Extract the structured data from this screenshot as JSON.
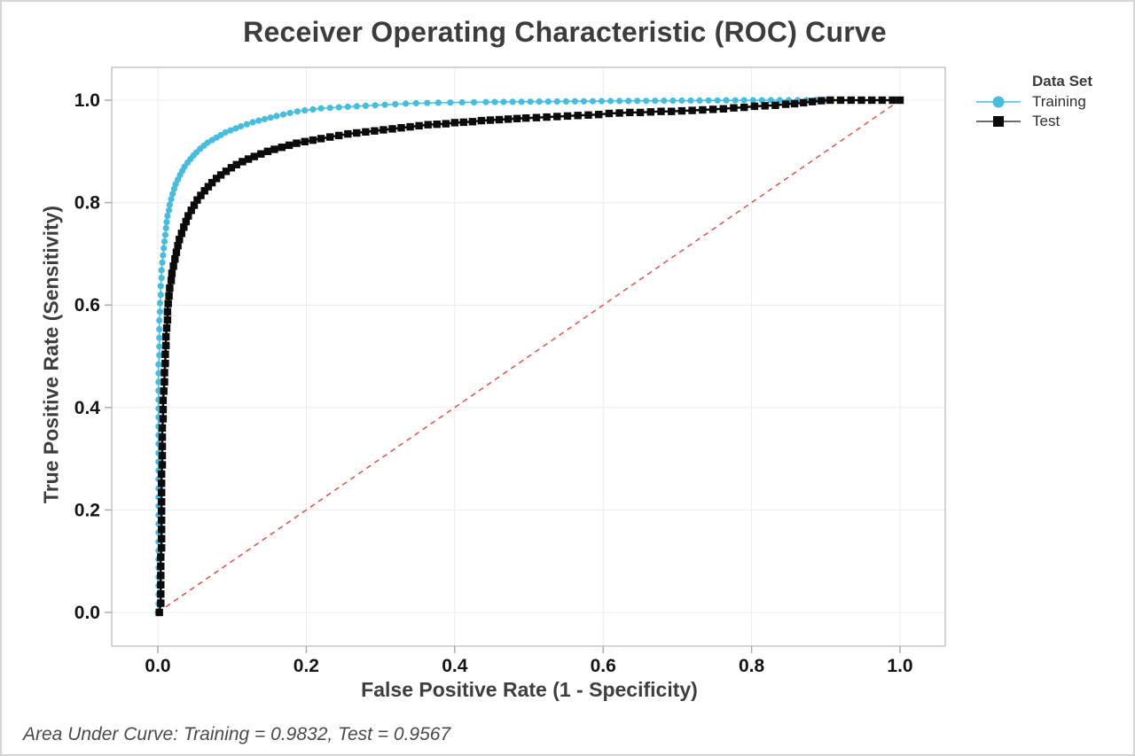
{
  "window": {
    "background_color": "#ffffff",
    "border_color": "#d5d5d5"
  },
  "chart": {
    "title": "Receiver Operating Characteristic (ROC) Curve",
    "x_label": "False Positive Rate (1 - Specificity)",
    "y_label": "True Positive Rate (Sensitivity)",
    "footer": "Area Under Curve: Training = 0.9832, Test = 0.9567",
    "legend": {
      "title": "Data Set",
      "items": [
        {
          "label": "Training",
          "color": "#45bddf",
          "marker": "circle"
        },
        {
          "label": "Test",
          "color": "#0b0b0b",
          "marker": "square"
        }
      ]
    }
  },
  "chart_data": {
    "type": "line",
    "title": "Receiver Operating Characteristic (ROC) Curve",
    "xlabel": "False Positive Rate (1 - Specificity)",
    "ylabel": "True Positive Rate (Sensitivity)",
    "xlim": [
      0,
      1
    ],
    "ylim": [
      0,
      1
    ],
    "x_ticks": [
      "0.0",
      "0.2",
      "0.4",
      "0.6",
      "0.8",
      "1.0"
    ],
    "y_ticks": [
      "0.0",
      "0.2",
      "0.4",
      "0.6",
      "0.8",
      "1.0"
    ],
    "grid": true,
    "grid_color": "#ebebeb",
    "frame_color": "#c6c6c6",
    "tick_color": "#ababab",
    "legend_position": "right-top",
    "reference_line": {
      "name": "chance-diagonal",
      "from": [
        0,
        0
      ],
      "to": [
        1,
        1
      ],
      "color": "#e2463c",
      "style": "dashed"
    },
    "annotations": [
      "Area Under Curve: Training = 0.9832, Test = 0.9567"
    ],
    "series": [
      {
        "name": "Training",
        "auc": 0.9832,
        "color": "#45bddf",
        "marker": "circle",
        "points": [
          [
            0,
            0
          ],
          [
            0.001,
            0.017
          ],
          [
            0.001,
            0.035
          ],
          [
            0.001,
            0.052
          ],
          [
            0.001,
            0.069
          ],
          [
            0.001,
            0.087
          ],
          [
            0.001,
            0.104
          ],
          [
            0.001,
            0.121
          ],
          [
            0.001,
            0.138
          ],
          [
            0.001,
            0.156
          ],
          [
            0.001,
            0.173
          ],
          [
            0.001,
            0.19
          ],
          [
            0.001,
            0.208
          ],
          [
            0.001,
            0.225
          ],
          [
            0.001,
            0.242
          ],
          [
            0.001,
            0.26
          ],
          [
            0.001,
            0.277
          ],
          [
            0.001,
            0.294
          ],
          [
            0.001,
            0.311
          ],
          [
            0.001,
            0.329
          ],
          [
            0.001,
            0.346
          ],
          [
            0.001,
            0.363
          ],
          [
            0.001,
            0.381
          ],
          [
            0.001,
            0.398
          ],
          [
            0.001,
            0.415
          ],
          [
            0.001,
            0.433
          ],
          [
            0.001,
            0.45
          ],
          [
            0.001,
            0.467
          ],
          [
            0.001,
            0.484
          ],
          [
            0.002,
            0.502
          ],
          [
            0.002,
            0.519
          ],
          [
            0.002,
            0.536
          ],
          [
            0.002,
            0.553
          ],
          [
            0.002,
            0.57
          ],
          [
            0.003,
            0.587
          ],
          [
            0.003,
            0.604
          ],
          [
            0.004,
            0.62
          ],
          [
            0.004,
            0.637
          ],
          [
            0.005,
            0.653
          ],
          [
            0.005,
            0.668
          ],
          [
            0.006,
            0.683
          ],
          [
            0.007,
            0.697
          ],
          [
            0.008,
            0.711
          ],
          [
            0.009,
            0.724
          ],
          [
            0.01,
            0.737
          ],
          [
            0.011,
            0.75
          ],
          [
            0.012,
            0.762
          ],
          [
            0.013,
            0.774
          ],
          [
            0.015,
            0.785
          ],
          [
            0.016,
            0.796
          ],
          [
            0.018,
            0.807
          ],
          [
            0.02,
            0.817
          ],
          [
            0.022,
            0.827
          ],
          [
            0.024,
            0.836
          ],
          [
            0.027,
            0.845
          ],
          [
            0.03,
            0.854
          ],
          [
            0.033,
            0.862
          ],
          [
            0.036,
            0.87
          ],
          [
            0.04,
            0.878
          ],
          [
            0.044,
            0.885
          ],
          [
            0.048,
            0.892
          ],
          [
            0.052,
            0.898
          ],
          [
            0.057,
            0.905
          ],
          [
            0.062,
            0.911
          ],
          [
            0.067,
            0.917
          ],
          [
            0.073,
            0.922
          ],
          [
            0.079,
            0.927
          ],
          [
            0.085,
            0.932
          ],
          [
            0.091,
            0.937
          ],
          [
            0.098,
            0.941
          ],
          [
            0.105,
            0.945
          ],
          [
            0.112,
            0.949
          ],
          [
            0.12,
            0.953
          ],
          [
            0.128,
            0.957
          ],
          [
            0.136,
            0.96
          ],
          [
            0.144,
            0.963
          ],
          [
            0.152,
            0.966
          ],
          [
            0.16,
            0.969
          ],
          [
            0.169,
            0.972
          ],
          [
            0.178,
            0.975
          ],
          [
            0.188,
            0.978
          ],
          [
            0.198,
            0.98
          ],
          [
            0.209,
            0.982
          ],
          [
            0.22,
            0.984
          ],
          [
            0.232,
            0.985
          ],
          [
            0.244,
            0.986
          ],
          [
            0.256,
            0.987
          ],
          [
            0.268,
            0.988
          ],
          [
            0.28,
            0.989
          ],
          [
            0.293,
            0.99
          ],
          [
            0.306,
            0.991
          ],
          [
            0.32,
            0.992
          ],
          [
            0.334,
            0.993
          ],
          [
            0.348,
            0.994
          ],
          [
            0.363,
            0.9945
          ],
          [
            0.378,
            0.995
          ],
          [
            0.394,
            0.9953
          ],
          [
            0.41,
            0.9956
          ],
          [
            0.426,
            0.9959
          ],
          [
            0.442,
            0.9962
          ],
          [
            0.454,
            0.9964
          ],
          [
            0.466,
            0.9966
          ],
          [
            0.478,
            0.9967
          ],
          [
            0.49,
            0.9969
          ],
          [
            0.502,
            0.997
          ],
          [
            0.514,
            0.9972
          ],
          [
            0.526,
            0.9973
          ],
          [
            0.538,
            0.9974
          ],
          [
            0.55,
            0.9976
          ],
          [
            0.562,
            0.9977
          ],
          [
            0.574,
            0.9978
          ],
          [
            0.586,
            0.998
          ],
          [
            0.598,
            0.9981
          ],
          [
            0.61,
            0.9982
          ],
          [
            0.622,
            0.9984
          ],
          [
            0.634,
            0.9985
          ],
          [
            0.646,
            0.9986
          ],
          [
            0.658,
            0.9987
          ],
          [
            0.67,
            0.9988
          ],
          [
            0.682,
            0.9989
          ],
          [
            0.694,
            0.999
          ],
          [
            0.706,
            0.9991
          ],
          [
            0.718,
            0.9992
          ],
          [
            0.73,
            0.9993
          ],
          [
            0.742,
            0.9994
          ],
          [
            0.754,
            0.9995
          ],
          [
            0.766,
            0.9996
          ],
          [
            0.778,
            0.9997
          ],
          [
            0.79,
            0.9998
          ],
          [
            0.802,
            0.9998
          ],
          [
            0.814,
            0.9999
          ],
          [
            0.826,
            1
          ],
          [
            0.838,
            1
          ],
          [
            0.85,
            1
          ],
          [
            0.862,
            1
          ],
          [
            0.874,
            1
          ],
          [
            0.886,
            1
          ],
          [
            0.898,
            1
          ]
        ]
      },
      {
        "name": "Test",
        "auc": 0.9567,
        "color": "#0b0b0b",
        "marker": "square",
        "points": [
          [
            0.002,
            0
          ],
          [
            0.004,
            0.018
          ],
          [
            0.004,
            0.036
          ],
          [
            0.004,
            0.054
          ],
          [
            0.004,
            0.072
          ],
          [
            0.004,
            0.09
          ],
          [
            0.004,
            0.108
          ],
          [
            0.005,
            0.126
          ],
          [
            0.005,
            0.144
          ],
          [
            0.005,
            0.162
          ],
          [
            0.005,
            0.18
          ],
          [
            0.005,
            0.198
          ],
          [
            0.005,
            0.216
          ],
          [
            0.005,
            0.234
          ],
          [
            0.005,
            0.252
          ],
          [
            0.005,
            0.27
          ],
          [
            0.006,
            0.288
          ],
          [
            0.006,
            0.306
          ],
          [
            0.006,
            0.324
          ],
          [
            0.006,
            0.342
          ],
          [
            0.006,
            0.36
          ],
          [
            0.007,
            0.378
          ],
          [
            0.007,
            0.396
          ],
          [
            0.007,
            0.414
          ],
          [
            0.008,
            0.432
          ],
          [
            0.009,
            0.45
          ],
          [
            0.009,
            0.468
          ],
          [
            0.01,
            0.486
          ],
          [
            0.01,
            0.504
          ],
          [
            0.011,
            0.521
          ],
          [
            0.011,
            0.538
          ],
          [
            0.012,
            0.555
          ],
          [
            0.013,
            0.571
          ],
          [
            0.013,
            0.587
          ],
          [
            0.014,
            0.603
          ],
          [
            0.015,
            0.618
          ],
          [
            0.016,
            0.633
          ],
          [
            0.018,
            0.648
          ],
          [
            0.019,
            0.662
          ],
          [
            0.021,
            0.676
          ],
          [
            0.023,
            0.69
          ],
          [
            0.025,
            0.703
          ],
          [
            0.027,
            0.716
          ],
          [
            0.029,
            0.728
          ],
          [
            0.032,
            0.74
          ],
          [
            0.035,
            0.752
          ],
          [
            0.038,
            0.763
          ],
          [
            0.041,
            0.774
          ],
          [
            0.045,
            0.785
          ],
          [
            0.049,
            0.795
          ],
          [
            0.053,
            0.805
          ],
          [
            0.058,
            0.814
          ],
          [
            0.063,
            0.823
          ],
          [
            0.068,
            0.831
          ],
          [
            0.073,
            0.839
          ],
          [
            0.079,
            0.847
          ],
          [
            0.085,
            0.854
          ],
          [
            0.092,
            0.861
          ],
          [
            0.099,
            0.868
          ],
          [
            0.106,
            0.874
          ],
          [
            0.114,
            0.88
          ],
          [
            0.122,
            0.885
          ],
          [
            0.13,
            0.89
          ],
          [
            0.139,
            0.895
          ],
          [
            0.148,
            0.9
          ],
          [
            0.157,
            0.904
          ],
          [
            0.167,
            0.908
          ],
          [
            0.177,
            0.912
          ],
          [
            0.187,
            0.916
          ],
          [
            0.198,
            0.919
          ],
          [
            0.209,
            0.922
          ],
          [
            0.22,
            0.925
          ],
          [
            0.232,
            0.928
          ],
          [
            0.244,
            0.931
          ],
          [
            0.256,
            0.934
          ],
          [
            0.268,
            0.936
          ],
          [
            0.28,
            0.938
          ],
          [
            0.292,
            0.94
          ],
          [
            0.304,
            0.942
          ],
          [
            0.316,
            0.944
          ],
          [
            0.328,
            0.946
          ],
          [
            0.34,
            0.948
          ],
          [
            0.352,
            0.95
          ],
          [
            0.364,
            0.952
          ],
          [
            0.376,
            0.953
          ],
          [
            0.388,
            0.954
          ],
          [
            0.4,
            0.956
          ],
          [
            0.412,
            0.957
          ],
          [
            0.424,
            0.958
          ],
          [
            0.436,
            0.96
          ],
          [
            0.448,
            0.961
          ],
          [
            0.46,
            0.962
          ],
          [
            0.472,
            0.963
          ],
          [
            0.484,
            0.964
          ],
          [
            0.496,
            0.965
          ],
          [
            0.51,
            0.966
          ],
          [
            0.524,
            0.967
          ],
          [
            0.538,
            0.968
          ],
          [
            0.552,
            0.969
          ],
          [
            0.566,
            0.97
          ],
          [
            0.58,
            0.971
          ],
          [
            0.594,
            0.972
          ],
          [
            0.608,
            0.974
          ],
          [
            0.622,
            0.975
          ],
          [
            0.636,
            0.976
          ],
          [
            0.65,
            0.976
          ],
          [
            0.664,
            0.977
          ],
          [
            0.678,
            0.978
          ],
          [
            0.692,
            0.978
          ],
          [
            0.706,
            0.979
          ],
          [
            0.72,
            0.98
          ],
          [
            0.734,
            0.981
          ],
          [
            0.748,
            0.982
          ],
          [
            0.762,
            0.983
          ],
          [
            0.776,
            0.985
          ],
          [
            0.79,
            0.986
          ],
          [
            0.804,
            0.988
          ],
          [
            0.818,
            0.989
          ],
          [
            0.832,
            0.99
          ],
          [
            0.846,
            0.992
          ],
          [
            0.858,
            0.993
          ],
          [
            0.87,
            0.995
          ],
          [
            0.882,
            0.997
          ],
          [
            0.894,
            0.999
          ],
          [
            0.906,
            1
          ],
          [
            0.92,
            1
          ],
          [
            0.934,
            1
          ],
          [
            0.948,
            1
          ],
          [
            0.962,
            1
          ],
          [
            0.976,
            1
          ],
          [
            0.99,
            1
          ],
          [
            1,
            1
          ]
        ]
      }
    ]
  }
}
